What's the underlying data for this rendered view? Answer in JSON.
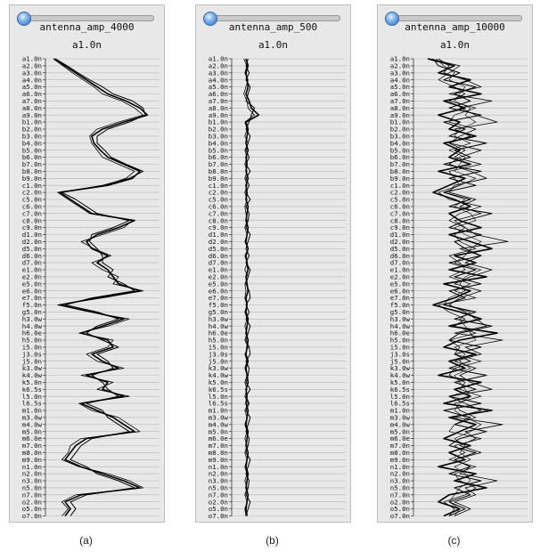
{
  "labels": [
    "a1.0n",
    "a2.0n",
    "a3.0n",
    "a4.0n",
    "a5.0n",
    "a6.0n",
    "a7.0n",
    "a8.0n",
    "a9.0n",
    "b1.0n",
    "b2.0n",
    "b3.0n",
    "b4.0n",
    "b5.0n",
    "b6.0n",
    "b7.0n",
    "b8.0n",
    "b9.0n",
    "c1.0n",
    "c2.0n",
    "c5.0n",
    "c6.0n",
    "c7.0n",
    "c8.0n",
    "c9.0n",
    "d1.0n",
    "d2.0n",
    "d5.0n",
    "d6.0n",
    "d7.0n",
    "e1.0n",
    "e2.0n",
    "e5.0n",
    "e6.0n",
    "e7.0n",
    "f5.0n",
    "g5.0n",
    "h3.0w",
    "h4.0w",
    "h6.0e",
    "h5.0n",
    "i5.0n",
    "j3.0s",
    "j5.0n",
    "k3.0w",
    "k4.0w",
    "k5.0n",
    "k6.5s",
    "l5.0n",
    "l6.5s",
    "m1.0n",
    "m3.0w",
    "m4.0w",
    "m5.0n",
    "m6.0e",
    "m7.0n",
    "m8.0n",
    "m9.0n",
    "n1.0n",
    "n2.0n",
    "n3.0n",
    "n5.0n",
    "n7.0n",
    "o2.0n",
    "o5.0n",
    "o7.0n"
  ],
  "panels": [
    {
      "slider_value": 0.0,
      "title": "antenna_amp_4000",
      "subtitle": "a1.0n",
      "caption": "(a)"
    },
    {
      "slider_value": 0.0,
      "title": "antenna_amp_500",
      "subtitle": "a1.0n",
      "caption": "(b)"
    },
    {
      "slider_value": 0.0,
      "title": "antenna_amp_10000",
      "subtitle": "a1.0n",
      "caption": "(c)"
    }
  ],
  "chart_data": [
    {
      "type": "line",
      "title": "antenna_amp_4000",
      "subtitle": "a1.0n",
      "orientation": "vertical-profiles",
      "xlim": [
        0,
        1
      ],
      "series": [
        {
          "values": [
            0.05,
            0.15,
            0.25,
            0.35,
            0.45,
            0.55,
            0.72,
            0.85,
            0.92,
            0.7,
            0.5,
            0.4,
            0.42,
            0.48,
            0.55,
            0.7,
            0.85,
            0.78,
            0.55,
            0.1,
            0.2,
            0.3,
            0.4,
            0.8,
            0.65,
            0.45,
            0.35,
            0.4,
            0.55,
            0.45,
            0.55,
            0.6,
            0.65,
            0.85,
            0.45,
            0.1,
            0.4,
            0.7,
            0.5,
            0.3,
            0.55,
            0.6,
            0.4,
            0.5,
            0.65,
            0.35,
            0.55,
            0.5,
            0.7,
            0.3,
            0.45,
            0.6,
            0.7,
            0.8,
            0.35,
            0.25,
            0.2,
            0.15,
            0.3,
            0.5,
            0.7,
            0.85,
            0.3,
            0.15,
            0.2,
            0.15
          ]
        },
        {
          "values": [
            0.06,
            0.17,
            0.27,
            0.38,
            0.5,
            0.6,
            0.78,
            0.88,
            0.9,
            0.75,
            0.55,
            0.45,
            0.45,
            0.52,
            0.58,
            0.72,
            0.88,
            0.75,
            0.5,
            0.12,
            0.25,
            0.35,
            0.45,
            0.75,
            0.6,
            0.4,
            0.38,
            0.45,
            0.5,
            0.5,
            0.6,
            0.55,
            0.7,
            0.8,
            0.4,
            0.15,
            0.45,
            0.65,
            0.45,
            0.35,
            0.5,
            0.65,
            0.45,
            0.55,
            0.6,
            0.4,
            0.5,
            0.55,
            0.65,
            0.35,
            0.5,
            0.55,
            0.65,
            0.75,
            0.4,
            0.3,
            0.25,
            0.2,
            0.35,
            0.45,
            0.65,
            0.8,
            0.35,
            0.2,
            0.25,
            0.2
          ]
        },
        {
          "values": [
            0.04,
            0.13,
            0.22,
            0.32,
            0.42,
            0.5,
            0.68,
            0.8,
            0.88,
            0.65,
            0.45,
            0.38,
            0.4,
            0.45,
            0.5,
            0.65,
            0.8,
            0.72,
            0.52,
            0.08,
            0.18,
            0.28,
            0.38,
            0.78,
            0.7,
            0.5,
            0.3,
            0.42,
            0.58,
            0.4,
            0.5,
            0.65,
            0.6,
            0.88,
            0.5,
            0.08,
            0.38,
            0.75,
            0.55,
            0.28,
            0.6,
            0.55,
            0.35,
            0.45,
            0.7,
            0.3,
            0.6,
            0.45,
            0.75,
            0.28,
            0.4,
            0.65,
            0.75,
            0.85,
            0.3,
            0.2,
            0.18,
            0.12,
            0.28,
            0.55,
            0.75,
            0.88,
            0.25,
            0.12,
            0.18,
            0.12
          ]
        }
      ]
    },
    {
      "type": "line",
      "title": "antenna_amp_500",
      "subtitle": "a1.0n",
      "orientation": "vertical-profiles",
      "xlim": [
        0,
        1
      ],
      "series": [
        {
          "values": [
            0.1,
            0.12,
            0.1,
            0.11,
            0.12,
            0.1,
            0.13,
            0.15,
            0.22,
            0.1,
            0.12,
            0.11,
            0.1,
            0.12,
            0.1,
            0.11,
            0.1,
            0.12,
            0.1,
            0.11,
            0.1,
            0.12,
            0.11,
            0.1,
            0.12,
            0.11,
            0.1,
            0.12,
            0.1,
            0.11,
            0.12,
            0.1,
            0.11,
            0.12,
            0.1,
            0.11,
            0.1,
            0.12,
            0.11,
            0.1,
            0.12,
            0.11,
            0.1,
            0.12,
            0.1,
            0.11,
            0.12,
            0.1,
            0.11,
            0.1,
            0.12,
            0.11,
            0.1,
            0.12,
            0.11,
            0.1,
            0.12,
            0.11,
            0.1,
            0.12,
            0.11,
            0.1,
            0.12,
            0.11,
            0.1,
            0.11
          ]
        },
        {
          "values": [
            0.12,
            0.1,
            0.13,
            0.1,
            0.14,
            0.12,
            0.1,
            0.18,
            0.15,
            0.13,
            0.1,
            0.14,
            0.12,
            0.1,
            0.13,
            0.1,
            0.14,
            0.1,
            0.13,
            0.1,
            0.14,
            0.1,
            0.13,
            0.12,
            0.1,
            0.14,
            0.12,
            0.1,
            0.13,
            0.1,
            0.14,
            0.12,
            0.1,
            0.13,
            0.14,
            0.1,
            0.13,
            0.1,
            0.14,
            0.12,
            0.1,
            0.13,
            0.14,
            0.1,
            0.13,
            0.12,
            0.1,
            0.14,
            0.1,
            0.13,
            0.1,
            0.14,
            0.12,
            0.1,
            0.13,
            0.12,
            0.1,
            0.14,
            0.12,
            0.1,
            0.13,
            0.12,
            0.1,
            0.14,
            0.12,
            0.1
          ]
        },
        {
          "values": [
            0.08,
            0.11,
            0.09,
            0.12,
            0.1,
            0.08,
            0.11,
            0.12,
            0.18,
            0.09,
            0.11,
            0.09,
            0.12,
            0.09,
            0.11,
            0.09,
            0.11,
            0.09,
            0.11,
            0.09,
            0.11,
            0.09,
            0.1,
            0.11,
            0.09,
            0.11,
            0.09,
            0.12,
            0.09,
            0.11,
            0.09,
            0.12,
            0.09,
            0.1,
            0.09,
            0.11,
            0.09,
            0.11,
            0.09,
            0.11,
            0.09,
            0.12,
            0.09,
            0.11,
            0.09,
            0.11,
            0.09,
            0.11,
            0.09,
            0.12,
            0.09,
            0.11,
            0.09,
            0.11,
            0.09,
            0.11,
            0.09,
            0.11,
            0.09,
            0.11,
            0.09,
            0.11,
            0.09,
            0.11,
            0.09,
            0.1
          ]
        }
      ]
    },
    {
      "type": "line",
      "title": "antenna_amp_10000",
      "subtitle": "a1.0n",
      "orientation": "vertical-profiles",
      "xlim": [
        0,
        1
      ],
      "series": [
        {
          "values": [
            0.1,
            0.35,
            0.2,
            0.5,
            0.3,
            0.6,
            0.25,
            0.45,
            0.2,
            0.4,
            0.3,
            0.55,
            0.25,
            0.4,
            0.3,
            0.5,
            0.2,
            0.45,
            0.3,
            0.15,
            0.35,
            0.5,
            0.3,
            0.4,
            0.6,
            0.3,
            0.5,
            0.7,
            0.35,
            0.55,
            0.3,
            0.65,
            0.25,
            0.5,
            0.35,
            0.15,
            0.4,
            0.6,
            0.3,
            0.75,
            0.4,
            0.25,
            0.55,
            0.3,
            0.45,
            0.2,
            0.6,
            0.35,
            0.5,
            0.25,
            0.7,
            0.3,
            0.55,
            0.4,
            0.25,
            0.5,
            0.3,
            0.45,
            0.2,
            0.55,
            0.35,
            0.65,
            0.3,
            0.2,
            0.4,
            0.25
          ]
        },
        {
          "values": [
            0.15,
            0.2,
            0.4,
            0.25,
            0.55,
            0.35,
            0.5,
            0.3,
            0.6,
            0.25,
            0.45,
            0.3,
            0.65,
            0.35,
            0.5,
            0.25,
            0.6,
            0.3,
            0.55,
            0.25,
            0.5,
            0.3,
            0.7,
            0.45,
            0.3,
            0.6,
            0.35,
            0.45,
            0.6,
            0.3,
            0.55,
            0.35,
            0.6,
            0.3,
            0.45,
            0.25,
            0.55,
            0.35,
            0.7,
            0.4,
            0.3,
            0.6,
            0.35,
            0.5,
            0.3,
            0.65,
            0.35,
            0.55,
            0.3,
            0.6,
            0.25,
            0.5,
            0.35,
            0.65,
            0.4,
            0.3,
            0.55,
            0.35,
            0.5,
            0.3,
            0.6,
            0.35,
            0.5,
            0.3,
            0.45,
            0.3
          ]
        },
        {
          "values": [
            0.2,
            0.3,
            0.25,
            0.45,
            0.6,
            0.3,
            0.7,
            0.4,
            0.55,
            0.75,
            0.35,
            0.5,
            0.3,
            0.6,
            0.4,
            0.3,
            0.5,
            0.65,
            0.35,
            0.3,
            0.55,
            0.4,
            0.6,
            0.35,
            0.45,
            0.55,
            0.85,
            0.4,
            0.6,
            0.45,
            0.7,
            0.5,
            0.35,
            0.6,
            0.4,
            0.3,
            0.45,
            0.55,
            0.65,
            0.35,
            0.8,
            0.45,
            0.6,
            0.35,
            0.55,
            0.4,
            0.5,
            0.7,
            0.3,
            0.45,
            0.6,
            0.35,
            0.8,
            0.45,
            0.55,
            0.4,
            0.6,
            0.35,
            0.5,
            0.4,
            0.75,
            0.45,
            0.55,
            0.35,
            0.5,
            0.35
          ]
        },
        {
          "values": [
            0.12,
            0.4,
            0.3,
            0.2,
            0.35,
            0.45,
            0.3,
            0.55,
            0.35,
            0.3,
            0.55,
            0.4,
            0.3,
            0.45,
            0.35,
            0.6,
            0.3,
            0.35,
            0.4,
            0.2,
            0.3,
            0.6,
            0.4,
            0.3,
            0.45,
            0.35,
            0.4,
            0.55,
            0.3,
            0.4,
            0.45,
            0.3,
            0.5,
            0.35,
            0.55,
            0.2,
            0.3,
            0.45,
            0.35,
            0.55,
            0.3,
            0.4,
            0.35,
            0.6,
            0.35,
            0.3,
            0.45,
            0.4,
            0.6,
            0.35,
            0.4,
            0.55,
            0.35,
            0.3,
            0.6,
            0.35,
            0.45,
            0.3,
            0.55,
            0.35,
            0.4,
            0.55,
            0.45,
            0.25,
            0.35,
            0.3
          ]
        },
        {
          "values": [
            0.18,
            0.25,
            0.35,
            0.3,
            0.45,
            0.4,
            0.35,
            0.5,
            0.45,
            0.55,
            0.4,
            0.35,
            0.5,
            0.3,
            0.45,
            0.4,
            0.35,
            0.55,
            0.4,
            0.25,
            0.45,
            0.35,
            0.5,
            0.55,
            0.35,
            0.45,
            0.6,
            0.5,
            0.45,
            0.35,
            0.6,
            0.45,
            0.4,
            0.45,
            0.3,
            0.25,
            0.5,
            0.4,
            0.45,
            0.5,
            0.55,
            0.35,
            0.45,
            0.4,
            0.5,
            0.35,
            0.4,
            0.45,
            0.5,
            0.4,
            0.35,
            0.45,
            0.6,
            0.5,
            0.35,
            0.45,
            0.4,
            0.5,
            0.35,
            0.45,
            0.5,
            0.4,
            0.35,
            0.3,
            0.4,
            0.35
          ]
        }
      ]
    }
  ]
}
